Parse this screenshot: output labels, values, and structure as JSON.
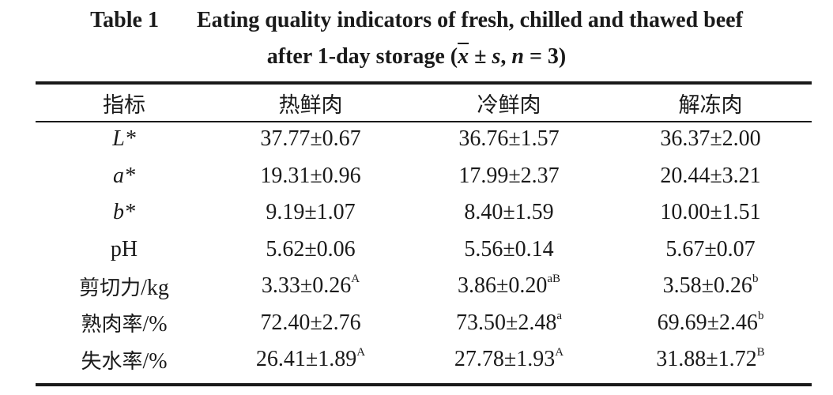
{
  "caption": {
    "label": "Table 1",
    "line1": "Eating quality indicators of fresh, chilled and thawed beef",
    "line2_prefix": "after 1-day storage (",
    "mean_symbol": "x",
    "pm": " ± ",
    "sd_symbol": "s",
    "sep": ", ",
    "n_symbol": "n",
    "n_value": " = 3)"
  },
  "table": {
    "headers": [
      "指标",
      "热鲜肉",
      "冷鲜肉",
      "解冻肉"
    ],
    "rows": [
      {
        "label_italic": "L*",
        "cells": [
          {
            "v": "37.77±0.67",
            "sup": ""
          },
          {
            "v": "36.76±1.57",
            "sup": ""
          },
          {
            "v": "36.37±2.00",
            "sup": ""
          }
        ]
      },
      {
        "label_italic": "a*",
        "cells": [
          {
            "v": "19.31±0.96",
            "sup": ""
          },
          {
            "v": "17.99±2.37",
            "sup": ""
          },
          {
            "v": "20.44±3.21",
            "sup": ""
          }
        ]
      },
      {
        "label_italic": "b*",
        "cells": [
          {
            "v": "9.19±1.07",
            "sup": ""
          },
          {
            "v": "8.40±1.59",
            "sup": ""
          },
          {
            "v": "10.00±1.51",
            "sup": ""
          }
        ]
      },
      {
        "label_cjk": "",
        "label_latin": "pH",
        "cells": [
          {
            "v": "5.62±0.06",
            "sup": ""
          },
          {
            "v": "5.56±0.14",
            "sup": ""
          },
          {
            "v": "5.67±0.07",
            "sup": ""
          }
        ]
      },
      {
        "label_cjk": "剪切力",
        "label_latin": "/kg",
        "cells": [
          {
            "v": "3.33±0.26",
            "sup": "A"
          },
          {
            "v": "3.86±0.20",
            "sup": "aB"
          },
          {
            "v": "3.58±0.26",
            "sup": "b"
          }
        ]
      },
      {
        "label_cjk": "熟肉率",
        "label_latin": "/%",
        "cells": [
          {
            "v": "72.40±2.76",
            "sup": ""
          },
          {
            "v": "73.50±2.48",
            "sup": "a"
          },
          {
            "v": "69.69±2.46",
            "sup": "b"
          }
        ]
      },
      {
        "label_cjk": "失水率",
        "label_latin": "/%",
        "cells": [
          {
            "v": "26.41±1.89",
            "sup": "A"
          },
          {
            "v": "27.78±1.93",
            "sup": "A"
          },
          {
            "v": "31.88±1.72",
            "sup": "B"
          }
        ]
      }
    ]
  }
}
